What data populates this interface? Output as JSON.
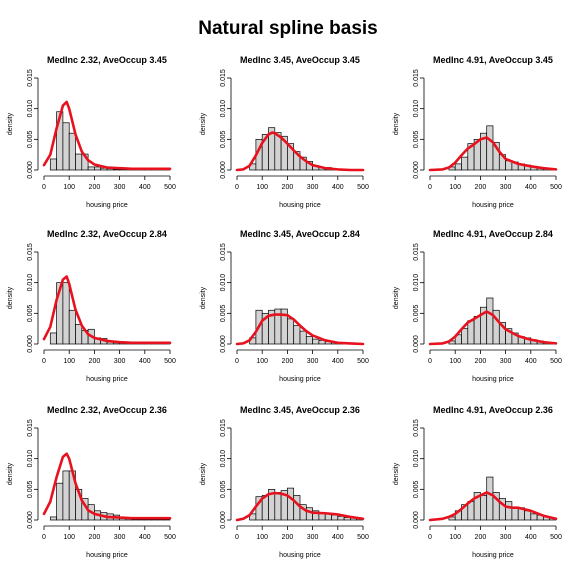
{
  "figure": {
    "title": "Natural spline basis"
  },
  "chart_data": [
    {
      "type": "bar",
      "title": "MedInc 2.32, AveOccup 3.45",
      "xlabel": "housing price",
      "ylabel": "density",
      "xlim": [
        0,
        500
      ],
      "ylim": [
        0,
        0.015
      ],
      "bin_width": 25,
      "xticks": [
        0,
        100,
        200,
        300,
        400,
        500
      ],
      "yticks": [
        0.0,
        0.005,
        0.01,
        0.015
      ],
      "xtick_labels": [
        "0",
        "100",
        "200",
        "300",
        "400",
        "500"
      ],
      "ytick_labels": [
        "0.000",
        "0.005",
        "0.010",
        "0.015"
      ],
      "bin_starts": [
        25,
        50,
        75,
        100,
        125,
        150,
        175,
        200,
        225,
        250,
        275,
        300,
        325,
        350,
        375,
        400,
        425,
        450,
        475
      ],
      "densities": [
        0.0018,
        0.0095,
        0.0077,
        0.006,
        0.0026,
        0.0026,
        0.0005,
        0.0005,
        0.0003,
        0.0002,
        0.0001,
        0.0001,
        0.0001,
        0.0001,
        0.0001,
        0.0001,
        0.0001,
        0.0001,
        0.0001
      ],
      "curve_x": [
        0,
        25,
        50,
        75,
        90,
        100,
        125,
        150,
        175,
        200,
        250,
        300,
        350,
        400,
        450,
        500
      ],
      "curve_y": [
        0.0008,
        0.0025,
        0.0068,
        0.0105,
        0.0111,
        0.01,
        0.0058,
        0.003,
        0.0016,
        0.0009,
        0.0004,
        0.0003,
        0.0002,
        0.0002,
        0.0002,
        0.0002
      ]
    },
    {
      "type": "bar",
      "title": "MedInc 3.45, AveOccup 3.45",
      "xlabel": "housing price",
      "ylabel": "density",
      "xlim": [
        0,
        500
      ],
      "ylim": [
        0,
        0.015
      ],
      "bin_width": 25,
      "xticks": [
        0,
        100,
        200,
        300,
        400,
        500
      ],
      "yticks": [
        0.0,
        0.005,
        0.01,
        0.015
      ],
      "xtick_labels": [
        "0",
        "100",
        "200",
        "300",
        "400",
        "500"
      ],
      "ytick_labels": [
        "0.000",
        "0.005",
        "0.010",
        "0.015"
      ],
      "bin_starts": [
        50,
        75,
        100,
        125,
        150,
        175,
        200,
        225,
        250,
        275,
        300,
        325,
        350,
        375,
        400,
        425,
        450,
        475
      ],
      "densities": [
        0.001,
        0.005,
        0.0058,
        0.0069,
        0.0061,
        0.0055,
        0.0043,
        0.003,
        0.0021,
        0.0014,
        0.0007,
        0.0004,
        0.0004,
        0.0002,
        0.0001,
        0.0001,
        0.0001,
        0.0001
      ],
      "curve_x": [
        0,
        25,
        50,
        75,
        100,
        125,
        140,
        150,
        175,
        200,
        225,
        250,
        275,
        300,
        350,
        400,
        450,
        500
      ],
      "curve_y": [
        0.0,
        0.0001,
        0.0007,
        0.0024,
        0.0044,
        0.0058,
        0.0061,
        0.006,
        0.0053,
        0.0043,
        0.0032,
        0.0022,
        0.0014,
        0.0008,
        0.0003,
        0.0001,
        0.0,
        0.0
      ]
    },
    {
      "type": "bar",
      "title": "MedInc 4.91, AveOccup 3.45",
      "xlabel": "housing price",
      "ylabel": "density",
      "xlim": [
        0,
        500
      ],
      "ylim": [
        0,
        0.015
      ],
      "bin_width": 25,
      "xticks": [
        0,
        100,
        200,
        300,
        400,
        500
      ],
      "yticks": [
        0.0,
        0.005,
        0.01,
        0.015
      ],
      "xtick_labels": [
        "0",
        "100",
        "200",
        "300",
        "400",
        "500"
      ],
      "ytick_labels": [
        "0.000",
        "0.005",
        "0.010",
        "0.015"
      ],
      "bin_starts": [
        75,
        100,
        125,
        150,
        175,
        200,
        225,
        250,
        275,
        300,
        325,
        350,
        375,
        400,
        425,
        450,
        475
      ],
      "densities": [
        0.0005,
        0.001,
        0.0021,
        0.0043,
        0.005,
        0.006,
        0.0072,
        0.0045,
        0.0025,
        0.0015,
        0.0013,
        0.001,
        0.0008,
        0.0006,
        0.0004,
        0.0003,
        0.0002
      ],
      "curve_x": [
        0,
        50,
        75,
        100,
        125,
        150,
        175,
        200,
        225,
        250,
        275,
        300,
        350,
        400,
        450,
        500
      ],
      "curve_y": [
        0.0,
        0.0001,
        0.0004,
        0.0012,
        0.0024,
        0.0035,
        0.0042,
        0.005,
        0.0053,
        0.0045,
        0.003,
        0.0018,
        0.001,
        0.0006,
        0.0003,
        0.0001
      ]
    },
    {
      "type": "bar",
      "title": "MedInc 2.32, AveOccup 2.84",
      "xlabel": "housing price",
      "ylabel": "density",
      "xlim": [
        0,
        500
      ],
      "ylim": [
        0,
        0.015
      ],
      "bin_width": 25,
      "xticks": [
        0,
        100,
        200,
        300,
        400,
        500
      ],
      "yticks": [
        0.0,
        0.005,
        0.01,
        0.015
      ],
      "xtick_labels": [
        "0",
        "100",
        "200",
        "300",
        "400",
        "500"
      ],
      "ytick_labels": [
        "0.000",
        "0.005",
        "0.010",
        "0.015"
      ],
      "bin_starts": [
        25,
        50,
        75,
        100,
        125,
        150,
        175,
        200,
        225,
        250,
        275,
        300,
        325,
        350,
        375,
        400,
        425,
        450,
        475
      ],
      "densities": [
        0.0018,
        0.01,
        0.01,
        0.0055,
        0.0032,
        0.0022,
        0.0024,
        0.001,
        0.0009,
        0.0003,
        0.0002,
        0.0002,
        0.0003,
        0.0002,
        0.0001,
        0.0001,
        0.0001,
        0.0001,
        0.0001
      ],
      "curve_x": [
        0,
        25,
        50,
        75,
        90,
        100,
        125,
        150,
        175,
        200,
        250,
        300,
        350,
        400,
        450,
        500
      ],
      "curve_y": [
        0.0008,
        0.0028,
        0.0072,
        0.0105,
        0.011,
        0.0098,
        0.0056,
        0.003,
        0.0016,
        0.001,
        0.0005,
        0.0003,
        0.0002,
        0.0002,
        0.0002,
        0.0002
      ]
    },
    {
      "type": "bar",
      "title": "MedInc 3.45, AveOccup 2.84",
      "xlabel": "housing price",
      "ylabel": "density",
      "xlim": [
        0,
        500
      ],
      "ylim": [
        0,
        0.015
      ],
      "bin_width": 25,
      "xticks": [
        0,
        100,
        200,
        300,
        400,
        500
      ],
      "yticks": [
        0.0,
        0.005,
        0.01,
        0.015
      ],
      "xtick_labels": [
        "0",
        "100",
        "200",
        "300",
        "400",
        "500"
      ],
      "ytick_labels": [
        "0.000",
        "0.005",
        "0.010",
        "0.015"
      ],
      "bin_starts": [
        50,
        75,
        100,
        125,
        150,
        175,
        200,
        225,
        250,
        275,
        300,
        325,
        350,
        375,
        400,
        425,
        450,
        475
      ],
      "densities": [
        0.001,
        0.0055,
        0.005,
        0.0055,
        0.0057,
        0.0057,
        0.0041,
        0.003,
        0.0021,
        0.0012,
        0.0008,
        0.0006,
        0.0004,
        0.0003,
        0.0002,
        0.0001,
        0.0001,
        0.0001
      ],
      "curve_x": [
        0,
        25,
        50,
        75,
        100,
        125,
        150,
        175,
        200,
        225,
        250,
        275,
        300,
        350,
        400,
        450,
        500
      ],
      "curve_y": [
        0.0,
        0.0001,
        0.0006,
        0.002,
        0.0038,
        0.0046,
        0.0048,
        0.0048,
        0.0047,
        0.004,
        0.003,
        0.0021,
        0.0014,
        0.0006,
        0.0002,
        0.0001,
        0.0
      ]
    },
    {
      "type": "bar",
      "title": "MedInc 4.91, AveOccup 2.84",
      "xlabel": "housing price",
      "ylabel": "density",
      "xlim": [
        0,
        500
      ],
      "ylim": [
        0,
        0.015
      ],
      "bin_width": 25,
      "xticks": [
        0,
        100,
        200,
        300,
        400,
        500
      ],
      "yticks": [
        0.0,
        0.005,
        0.01,
        0.015
      ],
      "xtick_labels": [
        "0",
        "100",
        "200",
        "300",
        "400",
        "500"
      ],
      "ytick_labels": [
        "0.000",
        "0.005",
        "0.010",
        "0.015"
      ],
      "bin_starts": [
        75,
        100,
        125,
        150,
        175,
        200,
        225,
        250,
        275,
        300,
        325,
        350,
        375,
        400,
        425,
        450,
        475
      ],
      "densities": [
        0.0005,
        0.0015,
        0.0025,
        0.0038,
        0.0045,
        0.006,
        0.0075,
        0.0055,
        0.0035,
        0.0025,
        0.0018,
        0.0012,
        0.001,
        0.0007,
        0.0005,
        0.0003,
        0.0002
      ],
      "curve_x": [
        0,
        50,
        75,
        100,
        125,
        150,
        175,
        200,
        225,
        250,
        275,
        300,
        350,
        400,
        450,
        500
      ],
      "curve_y": [
        0.0,
        0.0001,
        0.0004,
        0.0012,
        0.0024,
        0.0035,
        0.0041,
        0.0047,
        0.0053,
        0.0047,
        0.0035,
        0.0024,
        0.0013,
        0.0007,
        0.0003,
        0.0001
      ]
    },
    {
      "type": "bar",
      "title": "MedInc 2.32, AveOccup 2.36",
      "xlabel": "housing price",
      "ylabel": "density",
      "xlim": [
        0,
        500
      ],
      "ylim": [
        0,
        0.015
      ],
      "bin_width": 25,
      "xticks": [
        0,
        100,
        200,
        300,
        400,
        500
      ],
      "yticks": [
        0.0,
        0.005,
        0.01,
        0.015
      ],
      "xtick_labels": [
        "0",
        "100",
        "200",
        "300",
        "400",
        "500"
      ],
      "ytick_labels": [
        "0.000",
        "0.005",
        "0.010",
        "0.015"
      ],
      "bin_starts": [
        25,
        50,
        75,
        100,
        125,
        150,
        175,
        200,
        225,
        250,
        275,
        300,
        325,
        350,
        375,
        400,
        425,
        450,
        475
      ],
      "densities": [
        0.0005,
        0.006,
        0.008,
        0.008,
        0.005,
        0.0035,
        0.0025,
        0.0015,
        0.0012,
        0.001,
        0.0008,
        0.0003,
        0.0002,
        0.0001,
        0.0001,
        0.0001,
        0.0001,
        0.0001,
        0.0001
      ],
      "curve_x": [
        0,
        25,
        50,
        75,
        90,
        100,
        125,
        150,
        175,
        200,
        250,
        300,
        350,
        400,
        450,
        500
      ],
      "curve_y": [
        0.001,
        0.003,
        0.007,
        0.0103,
        0.0108,
        0.01,
        0.006,
        0.0032,
        0.0016,
        0.001,
        0.0005,
        0.0004,
        0.0003,
        0.0003,
        0.0003,
        0.0003
      ]
    },
    {
      "type": "bar",
      "title": "MedInc 3.45, AveOccup 2.36",
      "xlabel": "housing price",
      "ylabel": "density",
      "xlim": [
        0,
        500
      ],
      "ylim": [
        0,
        0.015
      ],
      "bin_width": 25,
      "xticks": [
        0,
        100,
        200,
        300,
        400,
        500
      ],
      "yticks": [
        0.0,
        0.005,
        0.01,
        0.015
      ],
      "xtick_labels": [
        "0",
        "100",
        "200",
        "300",
        "400",
        "500"
      ],
      "ytick_labels": [
        "0.000",
        "0.005",
        "0.010",
        "0.015"
      ],
      "bin_starts": [
        50,
        75,
        100,
        125,
        150,
        175,
        200,
        225,
        250,
        275,
        300,
        325,
        350,
        375,
        400,
        425,
        450,
        475
      ],
      "densities": [
        0.001,
        0.0038,
        0.004,
        0.005,
        0.0045,
        0.0048,
        0.0052,
        0.004,
        0.0025,
        0.002,
        0.0015,
        0.0012,
        0.001,
        0.0008,
        0.0006,
        0.0004,
        0.0003,
        0.0002
      ],
      "curve_x": [
        0,
        25,
        50,
        75,
        100,
        125,
        150,
        175,
        200,
        225,
        250,
        275,
        300,
        350,
        400,
        450,
        500
      ],
      "curve_y": [
        0.0,
        0.0002,
        0.0008,
        0.0022,
        0.0035,
        0.0042,
        0.0044,
        0.0043,
        0.004,
        0.0032,
        0.0022,
        0.0015,
        0.0012,
        0.0011,
        0.0009,
        0.0005,
        0.0002
      ]
    },
    {
      "type": "bar",
      "title": "MedInc 4.91, AveOccup 2.36",
      "xlabel": "housing price",
      "ylabel": "density",
      "xlim": [
        0,
        500
      ],
      "ylim": [
        0,
        0.015
      ],
      "bin_width": 25,
      "xticks": [
        0,
        100,
        200,
        300,
        400,
        500
      ],
      "yticks": [
        0.0,
        0.005,
        0.01,
        0.015
      ],
      "xtick_labels": [
        "0",
        "100",
        "200",
        "300",
        "400",
        "500"
      ],
      "ytick_labels": [
        "0.000",
        "0.005",
        "0.010",
        "0.015"
      ],
      "bin_starts": [
        75,
        100,
        125,
        150,
        175,
        200,
        225,
        250,
        275,
        300,
        325,
        350,
        375,
        400,
        425,
        450,
        475
      ],
      "densities": [
        0.0005,
        0.0015,
        0.0025,
        0.003,
        0.0045,
        0.004,
        0.007,
        0.0045,
        0.0035,
        0.003,
        0.002,
        0.002,
        0.0015,
        0.001,
        0.0008,
        0.0005,
        0.0003
      ],
      "curve_x": [
        0,
        50,
        75,
        100,
        125,
        150,
        175,
        200,
        225,
        250,
        275,
        300,
        325,
        350,
        400,
        450,
        500
      ],
      "curve_y": [
        0.0,
        0.0002,
        0.0005,
        0.001,
        0.0018,
        0.0027,
        0.0035,
        0.004,
        0.0045,
        0.004,
        0.003,
        0.0022,
        0.002,
        0.002,
        0.0015,
        0.0007,
        0.0002
      ]
    }
  ],
  "style": {
    "bar_fill": "#d3d3d3",
    "bar_stroke": "#000000",
    "curve_color": "#e8121f",
    "axis_color": "#000000"
  }
}
